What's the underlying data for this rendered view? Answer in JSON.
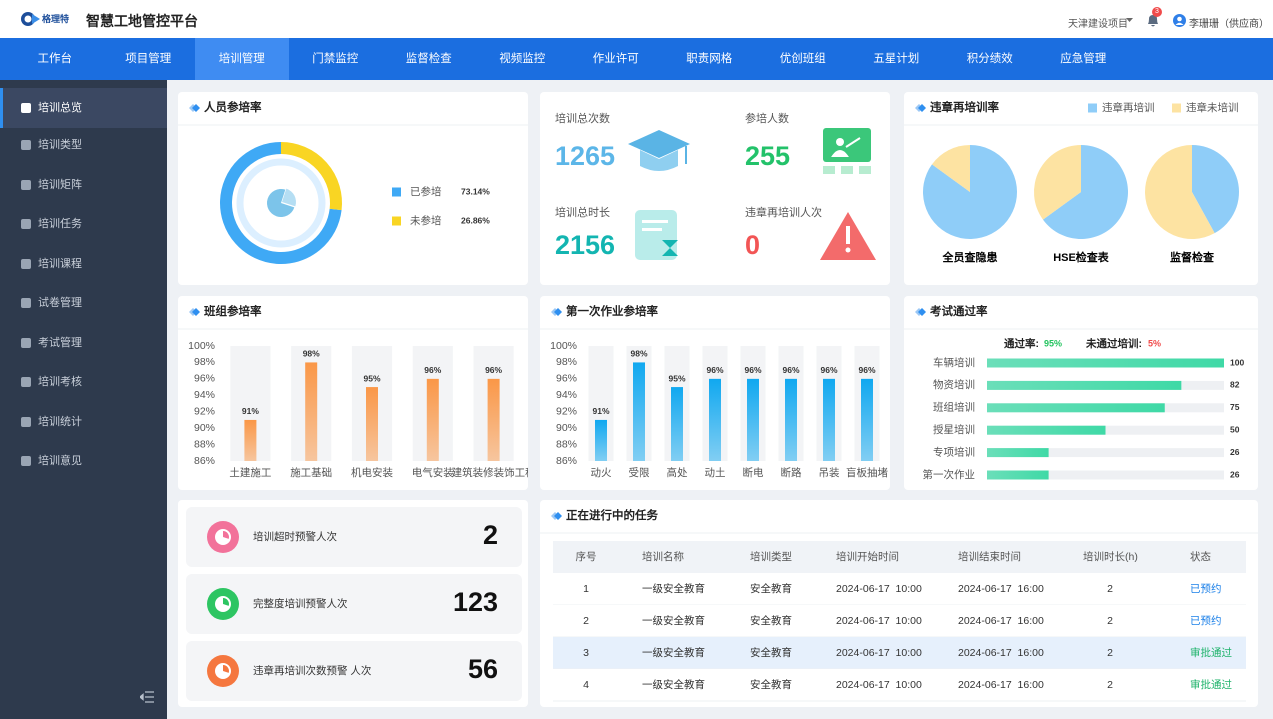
{
  "header": {
    "logo_text": "格理特",
    "title": "智慧工地管控平台",
    "project": "天津建设项目",
    "notifications": "3",
    "user": "李珊珊（供应商）"
  },
  "nav": {
    "items": [
      "工作台",
      "项目管理",
      "培训管理",
      "门禁监控",
      "监督检查",
      "视频监控",
      "作业许可",
      "职责网格",
      "优创班组",
      "五星计划",
      "积分绩效",
      "应急管理"
    ],
    "active": 2
  },
  "sidebar": {
    "items": [
      "培训总览",
      "培训类型",
      "培训矩阵",
      "培训任务",
      "培训课程",
      "试卷管理",
      "考试管理",
      "培训考核",
      "培训统计",
      "培训意见"
    ],
    "active": 0
  },
  "chart_data": [
    {
      "type": "pie",
      "donut": true,
      "title": "人员参培率",
      "categories": [
        "已参培",
        "未参培"
      ],
      "values": [
        73.14,
        26.86
      ],
      "value_labels": [
        "73.14%",
        "26.86%"
      ],
      "colors": [
        "#3fa9f5",
        "#f9d523"
      ]
    },
    {
      "type": "pie",
      "title": "违章再培训率",
      "categories": [
        "全员查隐患",
        "HSE检查表",
        "监督检查"
      ],
      "series": [
        {
          "name": "违章再培训",
          "color": "#8fcdf8",
          "values": [
            85,
            65,
            42
          ]
        },
        {
          "name": "违章未培训",
          "color": "#fde3a2",
          "values": [
            15,
            35,
            58
          ]
        }
      ],
      "legend": "top-right"
    },
    {
      "type": "bar",
      "title": "班组参培率",
      "categories": [
        "土建施工",
        "施工基础",
        "机电安装",
        "电气安装",
        "建筑装修装饰工程"
      ],
      "values": [
        91,
        98,
        95,
        96,
        96
      ],
      "value_labels": [
        "91%",
        "98%",
        "95%",
        "96%",
        "96%"
      ],
      "color": "#fa9747",
      "ylim": [
        86,
        100
      ],
      "yticks": [
        {
          "value": 100,
          "label": "100%"
        },
        {
          "value": 98,
          "label": "98%"
        },
        {
          "value": 96,
          "label": "96%"
        },
        {
          "value": 94,
          "label": "94%"
        },
        {
          "value": 92,
          "label": "92%"
        },
        {
          "value": 90,
          "label": "90%"
        },
        {
          "value": 88,
          "label": "88%"
        },
        {
          "value": 86,
          "label": "86%"
        }
      ],
      "grid": false
    },
    {
      "type": "bar",
      "title": "第一次作业参培率",
      "categories": [
        "动火",
        "受限",
        "高处",
        "动土",
        "断电",
        "断路",
        "吊装",
        "盲板抽堵"
      ],
      "values": [
        91,
        98,
        95,
        96,
        96,
        96,
        96,
        96
      ],
      "value_labels": [
        "91%",
        "98%",
        "95%",
        "96%",
        "96%",
        "96%",
        "96%",
        "96%"
      ],
      "color": "#10a8f0",
      "ylim": [
        86,
        100
      ],
      "yticks": [
        {
          "value": 100,
          "label": "100%"
        },
        {
          "value": 98,
          "label": "98%"
        },
        {
          "value": 96,
          "label": "96%"
        },
        {
          "value": 94,
          "label": "94%"
        },
        {
          "value": 92,
          "label": "92%"
        },
        {
          "value": 90,
          "label": "90%"
        },
        {
          "value": 88,
          "label": "88%"
        },
        {
          "value": 86,
          "label": "86%"
        }
      ],
      "grid": false
    },
    {
      "type": "hbar",
      "title": "考试通过率",
      "summary": [
        {
          "label": "通过率:",
          "text": "95%",
          "color": "#22c35e"
        },
        {
          "label": "未通过培训:",
          "text": "5%",
          "color": "#f04b4b"
        }
      ],
      "categories": [
        "车辆培训",
        "物资培训",
        "班组培训",
        "授星培训",
        "专项培训",
        "第一次作业"
      ],
      "values": [
        100,
        82,
        75,
        50,
        26,
        26
      ],
      "color": "#3fd9a6",
      "xlim": [
        0,
        100
      ]
    }
  ],
  "stats": [
    {
      "label": "培训总次数",
      "value": 1265,
      "color": "#5cb6e8"
    },
    {
      "label": "参培人数",
      "value": 255,
      "color": "#23c26a"
    },
    {
      "label": "培训总时长",
      "value": 2156,
      "color": "#13b5b1"
    },
    {
      "label": "违章再培训人次",
      "value": 0,
      "color": "#f25555"
    }
  ],
  "alerts": [
    {
      "label": "培训超时预警人次",
      "value": 2,
      "color": "#f2729a"
    },
    {
      "label": "完整度培训预警人次",
      "value": 123,
      "color": "#2dc562"
    },
    {
      "label": "违章再培训次数预警 人次",
      "value": 56,
      "color": "#f5773f"
    }
  ],
  "tasks": {
    "title": "正在进行中的任务",
    "columns": [
      "序号",
      "培训名称",
      "培训类型",
      "培训开始时间",
      "培训结束时间",
      "培训时长(h)",
      "状态"
    ],
    "rows": [
      [
        "1",
        "一级安全教育",
        "安全教育",
        "2024-06-17  10:00",
        "2024-06-17  16:00",
        "2",
        "已预约"
      ],
      [
        "2",
        "一级安全教育",
        "安全教育",
        "2024-06-17  10:00",
        "2024-06-17  16:00",
        "2",
        "已预约"
      ],
      [
        "3",
        "一级安全教育",
        "安全教育",
        "2024-06-17  10:00",
        "2024-06-17  16:00",
        "2",
        "审批通过"
      ],
      [
        "4",
        "一级安全教育",
        "安全教育",
        "2024-06-17  10:00",
        "2024-06-17  16:00",
        "2",
        "审批通过"
      ]
    ],
    "status_colors": [
      "#1a7fe8",
      "#1a7fe8",
      "#1fb36b",
      "#1fb36b"
    ],
    "highlight_row": 2
  }
}
